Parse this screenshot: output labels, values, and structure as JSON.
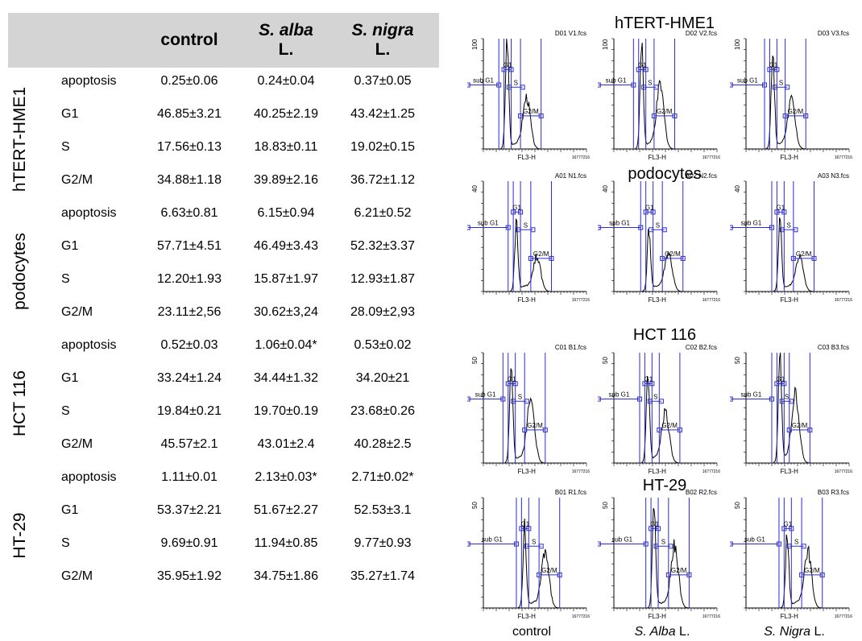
{
  "table": {
    "headers": {
      "control": "control",
      "salba_italic": "S. alba",
      "salba_suffix": "L.",
      "snigra_italic": "S. nigra",
      "snigra_suffix": "L."
    },
    "groups": [
      {
        "name": "hTERT-HME1",
        "rows": [
          {
            "label": "apoptosis",
            "values": [
              "0.25±0.06",
              "0.24±0.04",
              "0.37±0.05"
            ]
          },
          {
            "label": "G1",
            "values": [
              "46.85±3.21",
              "40.25±2.19",
              "43.42±1.25"
            ]
          },
          {
            "label": "S",
            "values": [
              "17.56±0.13",
              "18.83±0.11",
              "19.02±0.15"
            ]
          },
          {
            "label": "G2/M",
            "values": [
              "34.88±1.18",
              "39.89±2.16",
              "36.72±1.12"
            ]
          }
        ]
      },
      {
        "name": "podocytes",
        "rows": [
          {
            "label": "apoptosis",
            "values": [
              "6.63±0.81",
              "6.15±0.94",
              "6.21±0.52"
            ]
          },
          {
            "label": "G1",
            "values": [
              "57.71±4.51",
              "46.49±3.43",
              "52.32±3.37"
            ]
          },
          {
            "label": "S",
            "values": [
              "12.20±1.93",
              "15.87±1.97",
              "12.93±1.87"
            ]
          },
          {
            "label": "G2/M",
            "values": [
              "23.11±2,56",
              "30.62±3,24",
              "28.09±2,93"
            ]
          }
        ]
      },
      {
        "name": "HCT 116",
        "rows": [
          {
            "label": "apoptosis",
            "values": [
              "0.52±0.03",
              "1.06±0.04*",
              "0.53±0.02"
            ]
          },
          {
            "label": "G1",
            "values": [
              "33.24±1.24",
              "34.44±1.32",
              "34.20±21"
            ]
          },
          {
            "label": "S",
            "values": [
              "19.84±0.21",
              "19.70±0.19",
              "23.68±0.26"
            ]
          },
          {
            "label": "G2/M",
            "values": [
              "45.57±2.1",
              "43.01±2.4",
              "40.28±2.5"
            ]
          }
        ]
      },
      {
        "name": "HT-29",
        "rows": [
          {
            "label": "apoptosis",
            "values": [
              "1.11±0.01",
              "2.13±0.03*",
              "2.71±0.02*"
            ]
          },
          {
            "label": "G1",
            "values": [
              "53.37±2.21",
              "51.67±2.27",
              "52.53±3.1"
            ]
          },
          {
            "label": "S",
            "values": [
              "9.69±0.91",
              "11.94±0.85",
              "9.77±0.93"
            ]
          },
          {
            "label": "G2/M",
            "values": [
              "35.95±1.92",
              "34.75±1.86",
              "35.27±1.74"
            ]
          }
        ]
      }
    ]
  },
  "plots": {
    "column_labels": [
      {
        "italic": "",
        "suffix": "control"
      },
      {
        "italic": "S. Alba",
        "suffix": " L."
      },
      {
        "italic": "S. Nigra",
        "suffix": " L."
      }
    ],
    "x_axis_label": "FL3-H",
    "x_max_label": "16777216",
    "gate_labels": {
      "sub": "sub G1",
      "g1": "G1",
      "s": "S",
      "g2m": "G2/M"
    },
    "line_color": "#000000",
    "gate_color": "#2b2bd6",
    "rows": [
      {
        "title": "hTERT-HME1",
        "y_max_label": "100",
        "files": [
          "D01 V1.fcs",
          "D02 V2.fcs",
          "D03 V3.fcs"
        ],
        "histograms": [
          {
            "g1_peak": 0.23,
            "g1_height": 1.0,
            "g2_peak": 0.42,
            "g2_height": 0.45
          },
          {
            "g1_peak": 0.27,
            "g1_height": 0.92,
            "g2_peak": 0.45,
            "g2_height": 0.55
          },
          {
            "g1_peak": 0.26,
            "g1_height": 0.9,
            "g2_peak": 0.44,
            "g2_height": 0.42
          }
        ]
      },
      {
        "title": "podocytes",
        "y_max_label": "40",
        "files": [
          "A01 N1.fcs",
          "A02 N2.fcs",
          "A03 N3.fcs"
        ],
        "histograms": [
          {
            "g1_peak": 0.32,
            "g1_height": 0.6,
            "g2_peak": 0.52,
            "g2_height": 0.3
          },
          {
            "g1_peak": 0.34,
            "g1_height": 0.55,
            "g2_peak": 0.53,
            "g2_height": 0.33
          },
          {
            "g1_peak": 0.33,
            "g1_height": 0.62,
            "g2_peak": 0.52,
            "g2_height": 0.3
          }
        ]
      },
      {
        "title": "HCT 116",
        "y_max_label": "50",
        "files": [
          "C01 B1.fcs",
          "C02 B2.fcs",
          "C03 B3.fcs"
        ],
        "histograms": [
          {
            "g1_peak": 0.27,
            "g1_height": 0.95,
            "g2_peak": 0.46,
            "g2_height": 0.6
          },
          {
            "g1_peak": 0.33,
            "g1_height": 0.8,
            "g2_peak": 0.5,
            "g2_height": 0.45
          },
          {
            "g1_peak": 0.33,
            "g1_height": 0.95,
            "g2_peak": 0.48,
            "g2_height": 0.6
          }
        ]
      },
      {
        "title": "HT-29",
        "y_max_label": "50",
        "files": [
          "B01 R1.fcs",
          "B02 R2.fcs",
          "B03 R3.fcs"
        ],
        "histograms": [
          {
            "g1_peak": 0.4,
            "g1_height": 0.72,
            "g2_peak": 0.6,
            "g2_height": 0.5
          },
          {
            "g1_peak": 0.39,
            "g1_height": 0.95,
            "g2_peak": 0.59,
            "g2_height": 0.55
          },
          {
            "g1_peak": 0.4,
            "g1_height": 0.68,
            "g2_peak": 0.6,
            "g2_height": 0.5
          }
        ]
      }
    ]
  }
}
